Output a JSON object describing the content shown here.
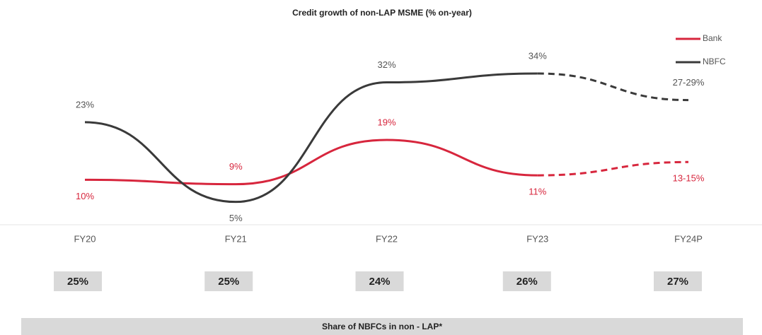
{
  "chart_data": {
    "type": "line",
    "title": "Credit growth of non-LAP MSME (% on-year)",
    "categories": [
      "FY20",
      "FY21",
      "FY22",
      "FY23",
      "FY24P"
    ],
    "series": [
      {
        "name": "Bank",
        "color": "#d7263d",
        "values": [
          10,
          9,
          19,
          11,
          14
        ],
        "value_labels": [
          "10%",
          "9%",
          "19%",
          "11%",
          "13-15%"
        ],
        "label_positions": [
          "below",
          "above",
          "above",
          "below",
          "below"
        ]
      },
      {
        "name": "NBFC",
        "color": "#3a3a3a",
        "values": [
          23,
          5,
          32,
          34,
          28
        ],
        "value_labels": [
          "23%",
          "5%",
          "32%",
          "34%",
          "27-29%"
        ],
        "label_positions": [
          "above",
          "below",
          "above",
          "above",
          "above"
        ]
      }
    ],
    "dash_from": 3,
    "legend": "top-right",
    "shares": {
      "title": "Share of NBFCs in non - LAP*",
      "values": [
        25,
        25,
        24,
        26,
        27
      ],
      "value_labels": [
        "25%",
        "25%",
        "24%",
        "26%",
        "27%"
      ]
    }
  }
}
